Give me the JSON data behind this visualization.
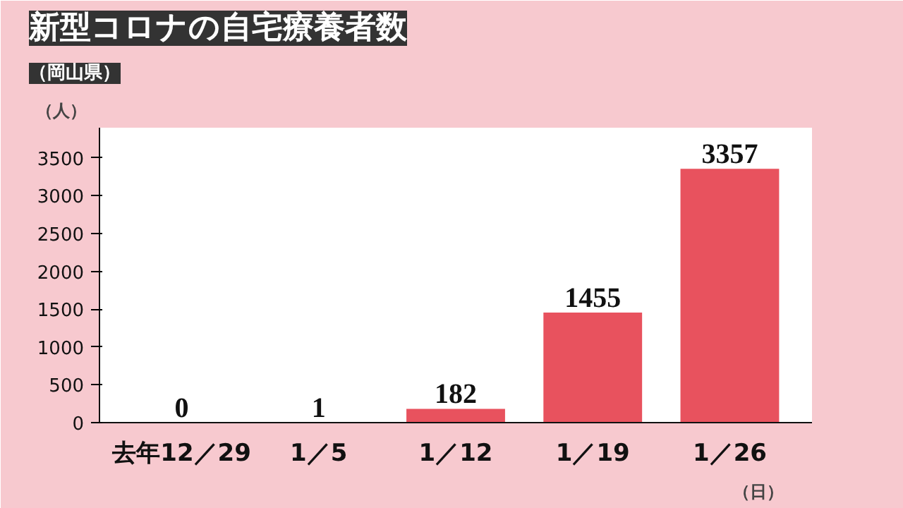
{
  "chart_data": {
    "type": "bar",
    "title": "新型コロナの自宅療養者数",
    "subtitle": "（岡山県）",
    "ylabel": "（人）",
    "xlabel": "（日）",
    "categories": [
      "去年12／29",
      "1／5",
      "1／12",
      "1／19",
      "1／26"
    ],
    "values": [
      0,
      1,
      182,
      1455,
      3357
    ],
    "color": "#e8525e",
    "ylim": [
      0,
      3900
    ],
    "yticks": [
      0,
      500,
      1000,
      1500,
      2000,
      2500,
      3000,
      3500
    ],
    "grid": false,
    "data_labels": true
  }
}
